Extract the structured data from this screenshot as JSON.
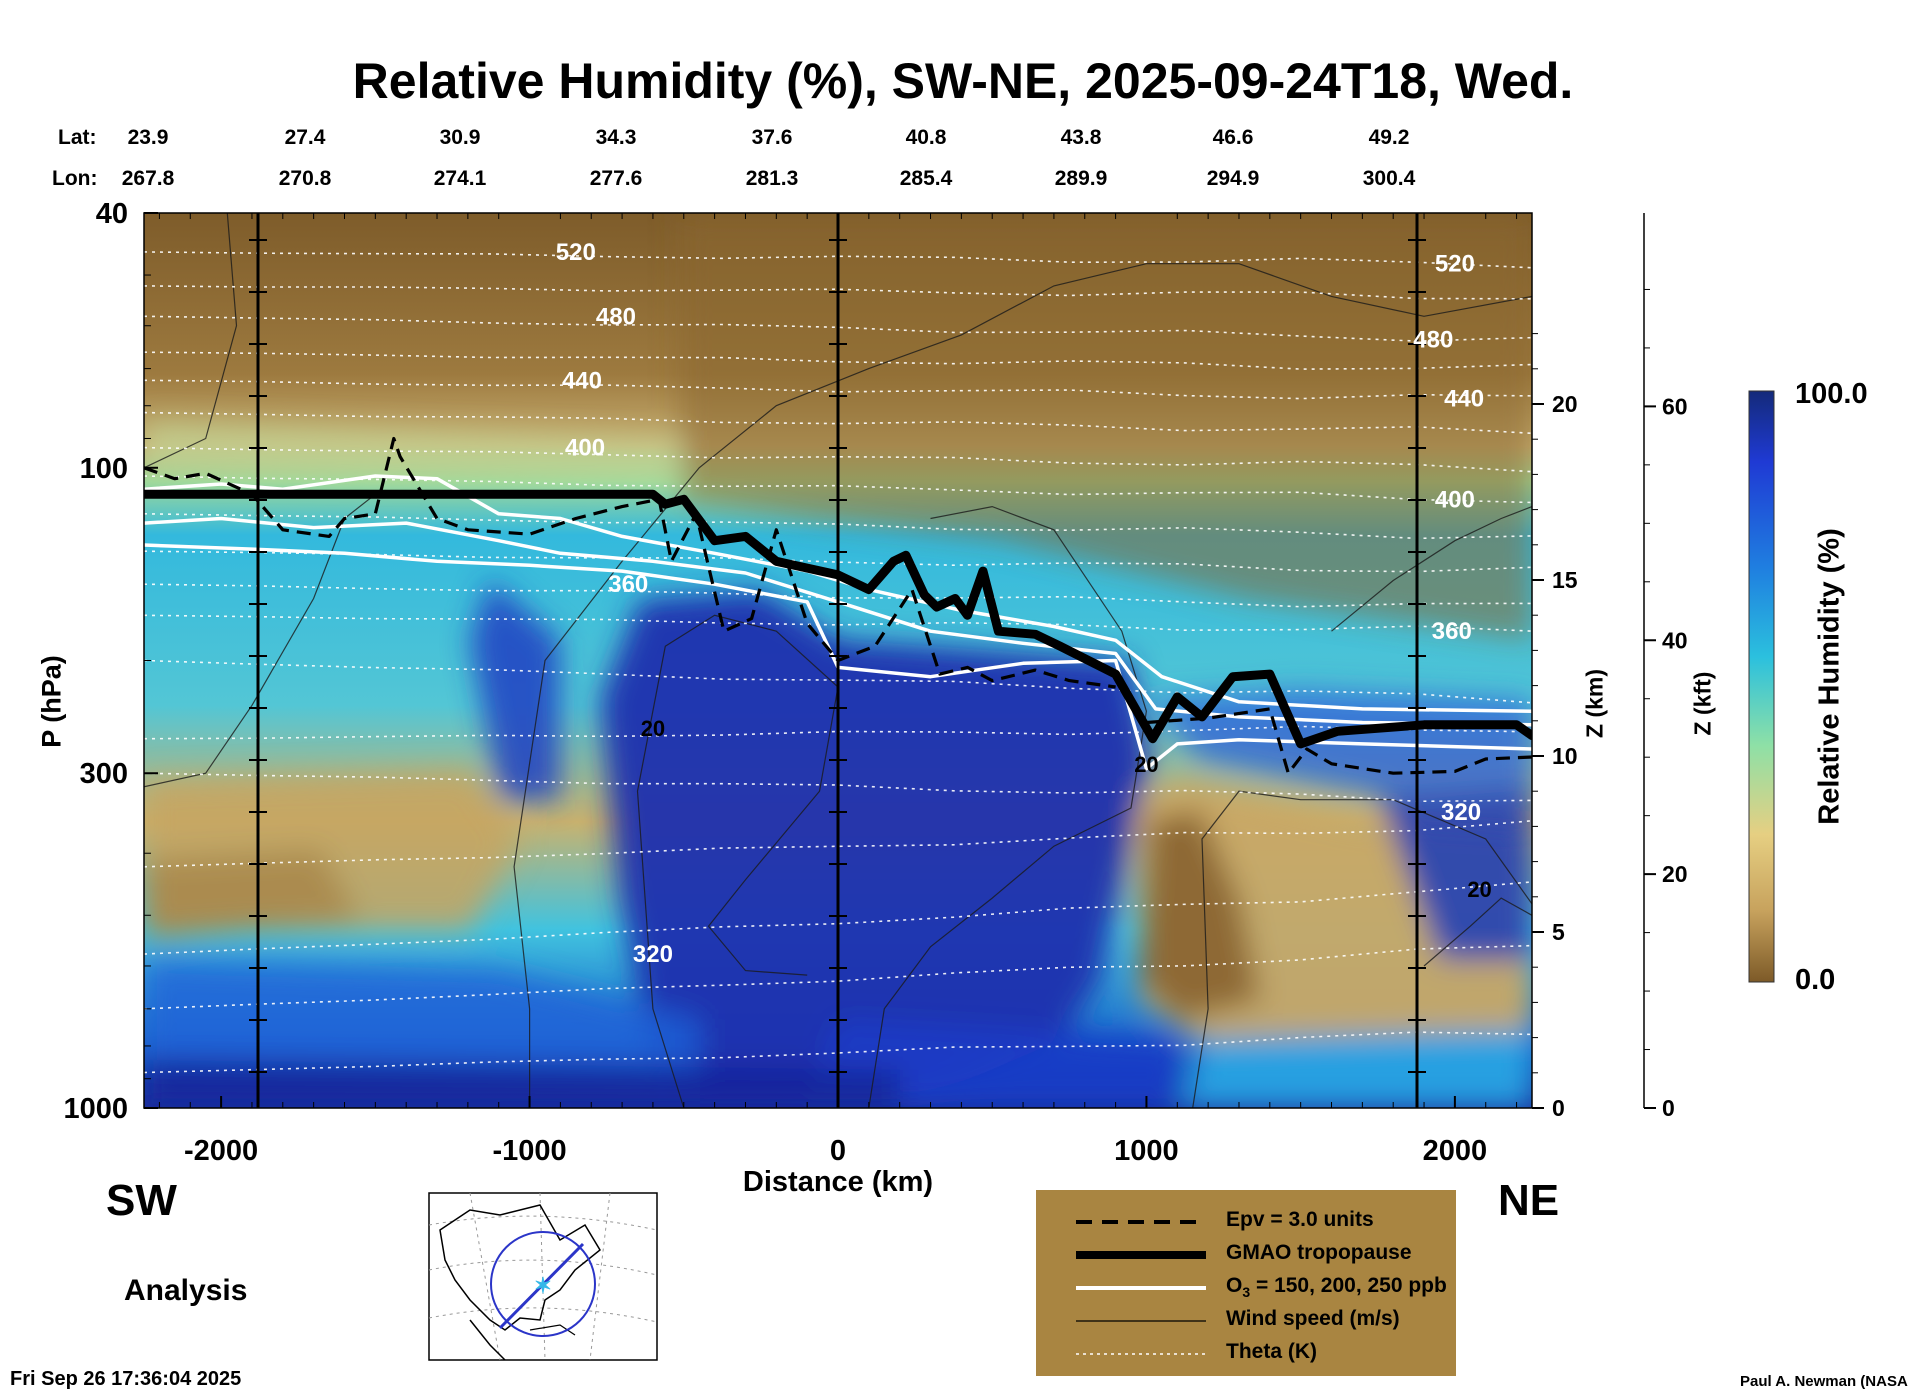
{
  "title": "Relative Humidity (%), SW-NE, 2025-09-24T18, Wed.",
  "header": {
    "lat_label": "Lat:",
    "lon_label": "Lon:",
    "lat": [
      "23.9",
      "27.4",
      "30.9",
      "34.3",
      "37.6",
      "40.8",
      "43.8",
      "46.6",
      "49.2"
    ],
    "lon": [
      "267.8",
      "270.8",
      "274.1",
      "277.6",
      "281.3",
      "285.4",
      "289.9",
      "294.9",
      "300.4"
    ]
  },
  "directions": {
    "left": "SW",
    "right": "NE"
  },
  "analysis_label": "Analysis",
  "footer": {
    "timestamp": "Fri Sep 26 17:36:04 2025",
    "credit": "Paul A. Newman (NASA"
  },
  "legend": {
    "items": [
      {
        "label": "Epv = 3.0 units",
        "style": "dashed-black"
      },
      {
        "label": "GMAO tropopause",
        "style": "thick-black"
      },
      {
        "label": "O",
        "sub": "3",
        "suffix": " = 150, 200, 250 ppb",
        "style": "white"
      },
      {
        "label": "Wind speed (m/s)",
        "style": "thin-black"
      },
      {
        "label": "Theta (K)",
        "style": "dotted-white"
      }
    ]
  },
  "colorbar": {
    "label": "Relative Humidity (%)",
    "max_label": "100.0",
    "min_label": "0.0"
  },
  "colors": {
    "dry": "#8a6530",
    "moist": "#1a2f9c",
    "legend_bg": "#a98541"
  },
  "chart_data": {
    "type": "heatmap",
    "xlabel": "Distance (km)",
    "ylabel": "P (hPa)",
    "y_scale": "log",
    "xlim": [
      -2250,
      2250
    ],
    "ylim": [
      1000,
      40
    ],
    "x_ticks": [
      "-2000",
      "-1000",
      "0",
      "1000",
      "2000"
    ],
    "x_tick_values": [
      -2000,
      -1000,
      0,
      1000,
      2000
    ],
    "y_ticks": [
      "40",
      "100",
      "300",
      "1000"
    ],
    "y_tick_values": [
      40,
      100,
      300,
      1000
    ],
    "z_km_label": "Z (km)",
    "z_km_ticks": [
      "0",
      "5",
      "10",
      "15",
      "20"
    ],
    "z_km_values": [
      0,
      5,
      10,
      15,
      20
    ],
    "z_kft_label": "Z (kft)",
    "z_kft_ticks": [
      "0",
      "20",
      "40",
      "60"
    ],
    "z_kft_values": [
      0,
      20,
      40,
      60
    ],
    "colorbar_range": [
      0,
      100
    ],
    "theta_labels": [
      {
        "text": "520",
        "x": -850,
        "p": 46
      },
      {
        "text": "480",
        "x": -720,
        "p": 58
      },
      {
        "text": "440",
        "x": -830,
        "p": 73
      },
      {
        "text": "400",
        "x": -820,
        "p": 93
      },
      {
        "text": "360",
        "x": -680,
        "p": 152
      },
      {
        "text": "320",
        "x": -600,
        "p": 575
      },
      {
        "text": "520",
        "x": 2000,
        "p": 48
      },
      {
        "text": "480",
        "x": 1930,
        "p": 63
      },
      {
        "text": "440",
        "x": 2030,
        "p": 78
      },
      {
        "text": "400",
        "x": 2000,
        "p": 112
      },
      {
        "text": "360",
        "x": 1990,
        "p": 180
      },
      {
        "text": "320",
        "x": 2020,
        "p": 345
      }
    ],
    "wind_labels": [
      {
        "text": "20",
        "x": -600,
        "p": 255
      },
      {
        "text": "20",
        "x": 1000,
        "p": 290
      },
      {
        "text": "20",
        "x": 2080,
        "p": 455
      }
    ],
    "tropopause": [
      [
        -2250,
        110
      ],
      [
        -600,
        110
      ],
      [
        -560,
        114
      ],
      [
        -500,
        112
      ],
      [
        -400,
        130
      ],
      [
        -300,
        128
      ],
      [
        -200,
        140
      ],
      [
        0,
        147
      ],
      [
        100,
        155
      ],
      [
        180,
        140
      ],
      [
        220,
        137
      ],
      [
        280,
        158
      ],
      [
        320,
        165
      ],
      [
        380,
        160
      ],
      [
        420,
        170
      ],
      [
        470,
        145
      ],
      [
        520,
        180
      ],
      [
        640,
        182
      ],
      [
        720,
        190
      ],
      [
        900,
        210
      ],
      [
        1020,
        265
      ],
      [
        1100,
        228
      ],
      [
        1180,
        245
      ],
      [
        1280,
        212
      ],
      [
        1400,
        210
      ],
      [
        1500,
        270
      ],
      [
        1620,
        258
      ],
      [
        1900,
        252
      ],
      [
        2200,
        252
      ],
      [
        2250,
        262
      ]
    ],
    "epv_left": [
      [
        -2250,
        100
      ],
      [
        -2150,
        104
      ],
      [
        -2050,
        102
      ],
      [
        -1900,
        110
      ],
      [
        -1800,
        125
      ],
      [
        -1650,
        128
      ],
      [
        -1600,
        120
      ],
      [
        -1500,
        118
      ],
      [
        -1440,
        90
      ],
      [
        -1420,
        96
      ],
      [
        -1300,
        120
      ],
      [
        -1200,
        125
      ],
      [
        -1000,
        127
      ],
      [
        -850,
        120
      ],
      [
        -700,
        115
      ],
      [
        -580,
        112
      ],
      [
        -540,
        140
      ],
      [
        -460,
        118
      ],
      [
        -370,
        180
      ],
      [
        -280,
        172
      ],
      [
        -200,
        125
      ],
      [
        -100,
        175
      ],
      [
        0,
        200
      ],
      [
        120,
        190
      ],
      [
        240,
        155
      ],
      [
        330,
        210
      ],
      [
        420,
        205
      ],
      [
        500,
        215
      ],
      [
        640,
        207
      ],
      [
        750,
        215
      ],
      [
        900,
        220
      ]
    ],
    "epv_right": [
      [
        1000,
        250
      ],
      [
        1200,
        246
      ],
      [
        1400,
        238
      ],
      [
        1460,
        300
      ],
      [
        1520,
        275
      ],
      [
        1600,
        290
      ],
      [
        1800,
        300
      ],
      [
        2000,
        298
      ],
      [
        2100,
        285
      ],
      [
        2250,
        283
      ]
    ],
    "o3_lines": [
      [
        [
          -2250,
          108
        ],
        [
          -2000,
          106
        ],
        [
          -1800,
          108
        ],
        [
          -1500,
          103
        ],
        [
          -1300,
          104
        ],
        [
          -1100,
          118
        ],
        [
          -900,
          120
        ],
        [
          -700,
          128
        ],
        [
          -400,
          136
        ],
        [
          -100,
          145
        ],
        [
          100,
          155
        ],
        [
          400,
          167
        ],
        [
          700,
          177
        ],
        [
          900,
          186
        ],
        [
          1050,
          212
        ],
        [
          1300,
          232
        ],
        [
          1700,
          238
        ],
        [
          2250,
          240
        ]
      ],
      [
        [
          -2250,
          122
        ],
        [
          -2000,
          120
        ],
        [
          -1700,
          124
        ],
        [
          -1400,
          122
        ],
        [
          -1100,
          130
        ],
        [
          -900,
          136
        ],
        [
          -600,
          140
        ],
        [
          -300,
          146
        ],
        [
          0,
          162
        ],
        [
          300,
          180
        ],
        [
          600,
          188
        ],
        [
          900,
          195
        ],
        [
          1030,
          238
        ],
        [
          1300,
          245
        ],
        [
          1700,
          250
        ],
        [
          2250,
          252
        ]
      ],
      [
        [
          -2250,
          132
        ],
        [
          -1900,
          134
        ],
        [
          -1600,
          136
        ],
        [
          -1300,
          140
        ],
        [
          -1000,
          142
        ],
        [
          -700,
          145
        ],
        [
          -400,
          152
        ],
        [
          -100,
          162
        ],
        [
          0,
          205
        ],
        [
          300,
          212
        ],
        [
          600,
          202
        ],
        [
          900,
          200
        ],
        [
          1000,
          295
        ],
        [
          1100,
          270
        ],
        [
          1300,
          266
        ],
        [
          1700,
          270
        ],
        [
          2250,
          275
        ]
      ]
    ]
  }
}
